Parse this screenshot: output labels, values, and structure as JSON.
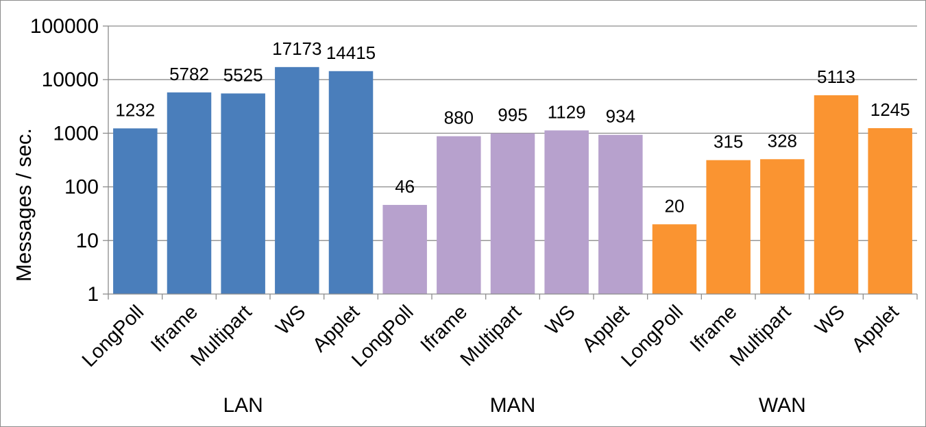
{
  "chart_data": {
    "type": "bar",
    "title": "",
    "xlabel": "",
    "ylabel": "Messages / sec.",
    "yscale": "log",
    "ylim": [
      1,
      100000
    ],
    "yticks": [
      "1",
      "10",
      "100",
      "1000",
      "10000",
      "100000"
    ],
    "grid": true,
    "legend": "none",
    "groups": [
      {
        "name": "LAN",
        "color": "#4a7ebb",
        "categories": [
          "LongPoll",
          "Iframe",
          "Multipart",
          "WS",
          "Applet"
        ],
        "values": [
          1232,
          5782,
          5525,
          17173,
          14415
        ],
        "labels": [
          "1232",
          "5782",
          "5525",
          "17173",
          "14415"
        ]
      },
      {
        "name": "MAN",
        "color": "#b7a1cd",
        "categories": [
          "LongPoll",
          "Iframe",
          "Multipart",
          "WS",
          "Applet"
        ],
        "values": [
          46,
          880,
          995,
          1129,
          934
        ],
        "labels": [
          "46",
          "880",
          "995",
          "1129",
          "934"
        ]
      },
      {
        "name": "WAN",
        "color": "#fa9431",
        "categories": [
          "LongPoll",
          "Iframe",
          "Multipart",
          "WS",
          "Applet"
        ],
        "values": [
          20,
          315,
          328,
          5113,
          1245
        ],
        "labels": [
          "20",
          "315",
          "328",
          "5113",
          "1245"
        ]
      }
    ]
  }
}
